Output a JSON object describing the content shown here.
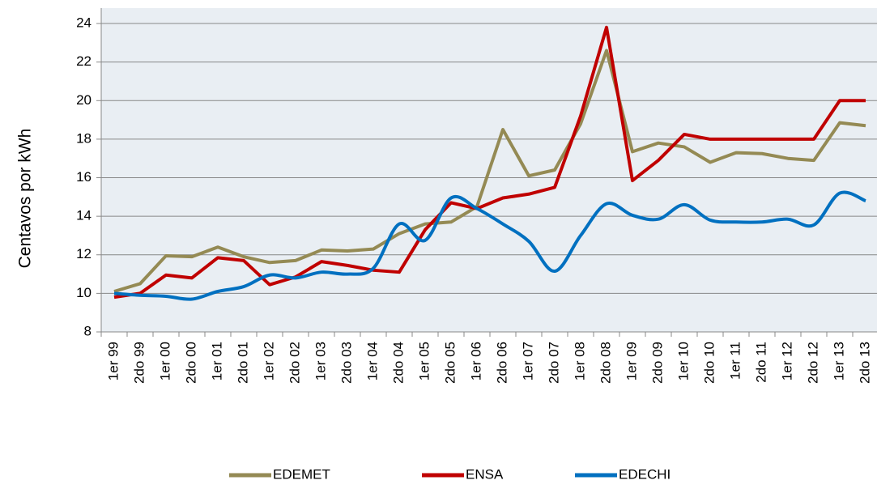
{
  "chart_data": {
    "type": "line",
    "y_label": "Centavos  por  kWh",
    "categories": [
      "1er  99",
      "2do  99",
      "1er  00",
      "2do  00",
      "1er  01",
      "2do  01",
      "1er  02",
      "2do  02",
      "1er  03",
      "2do  03",
      "1er  04",
      "2do  04",
      "1er  05",
      "2do  05",
      "1er  06",
      "2do  06",
      "1er  07",
      "2do  07",
      "1er  08",
      "2do  08",
      "1er  09",
      "2do  09",
      "1er  10",
      "2do  10",
      "1er  11",
      "2do  11",
      "1er  12",
      "2do  12",
      "1er  13",
      "2do  13"
    ],
    "series": [
      {
        "name": "EDEMET",
        "color": "#948a54",
        "values": [
          10.1,
          10.5,
          11.95,
          11.9,
          12.4,
          11.9,
          11.6,
          11.7,
          12.25,
          12.2,
          12.3,
          13.1,
          13.6,
          13.7,
          14.5,
          18.5,
          16.1,
          16.4,
          18.8,
          22.6,
          17.35,
          17.8,
          17.6,
          16.8,
          17.3,
          17.25,
          17.0,
          16.9,
          18.85,
          18.7
        ]
      },
      {
        "name": "ENSA",
        "color": "#c00000",
        "values": [
          9.8,
          10.0,
          10.95,
          10.8,
          11.85,
          11.7,
          10.45,
          10.85,
          11.65,
          11.45,
          11.2,
          11.1,
          13.3,
          14.7,
          14.4,
          14.95,
          15.15,
          15.5,
          19.2,
          23.8,
          15.85,
          16.9,
          18.25,
          18.0,
          18.0,
          18.0,
          18.0,
          18.0,
          20.0,
          20.0
        ]
      },
      {
        "name": "EDECHI",
        "color": "#0070c0",
        "smooth": true,
        "values": [
          10.0,
          9.9,
          9.85,
          9.7,
          10.1,
          10.35,
          10.95,
          10.8,
          11.1,
          11.0,
          11.3,
          13.6,
          12.75,
          14.95,
          14.4,
          13.6,
          12.7,
          11.15,
          13.0,
          14.65,
          14.05,
          13.85,
          14.6,
          13.8,
          13.7,
          13.7,
          13.85,
          13.55,
          15.2,
          14.8
        ]
      }
    ],
    "ylim": [
      8,
      24.8
    ],
    "yticks": [
      8,
      10,
      12,
      14,
      16,
      18,
      20,
      22,
      24
    ],
    "grid": true,
    "legend": "bottom"
  }
}
